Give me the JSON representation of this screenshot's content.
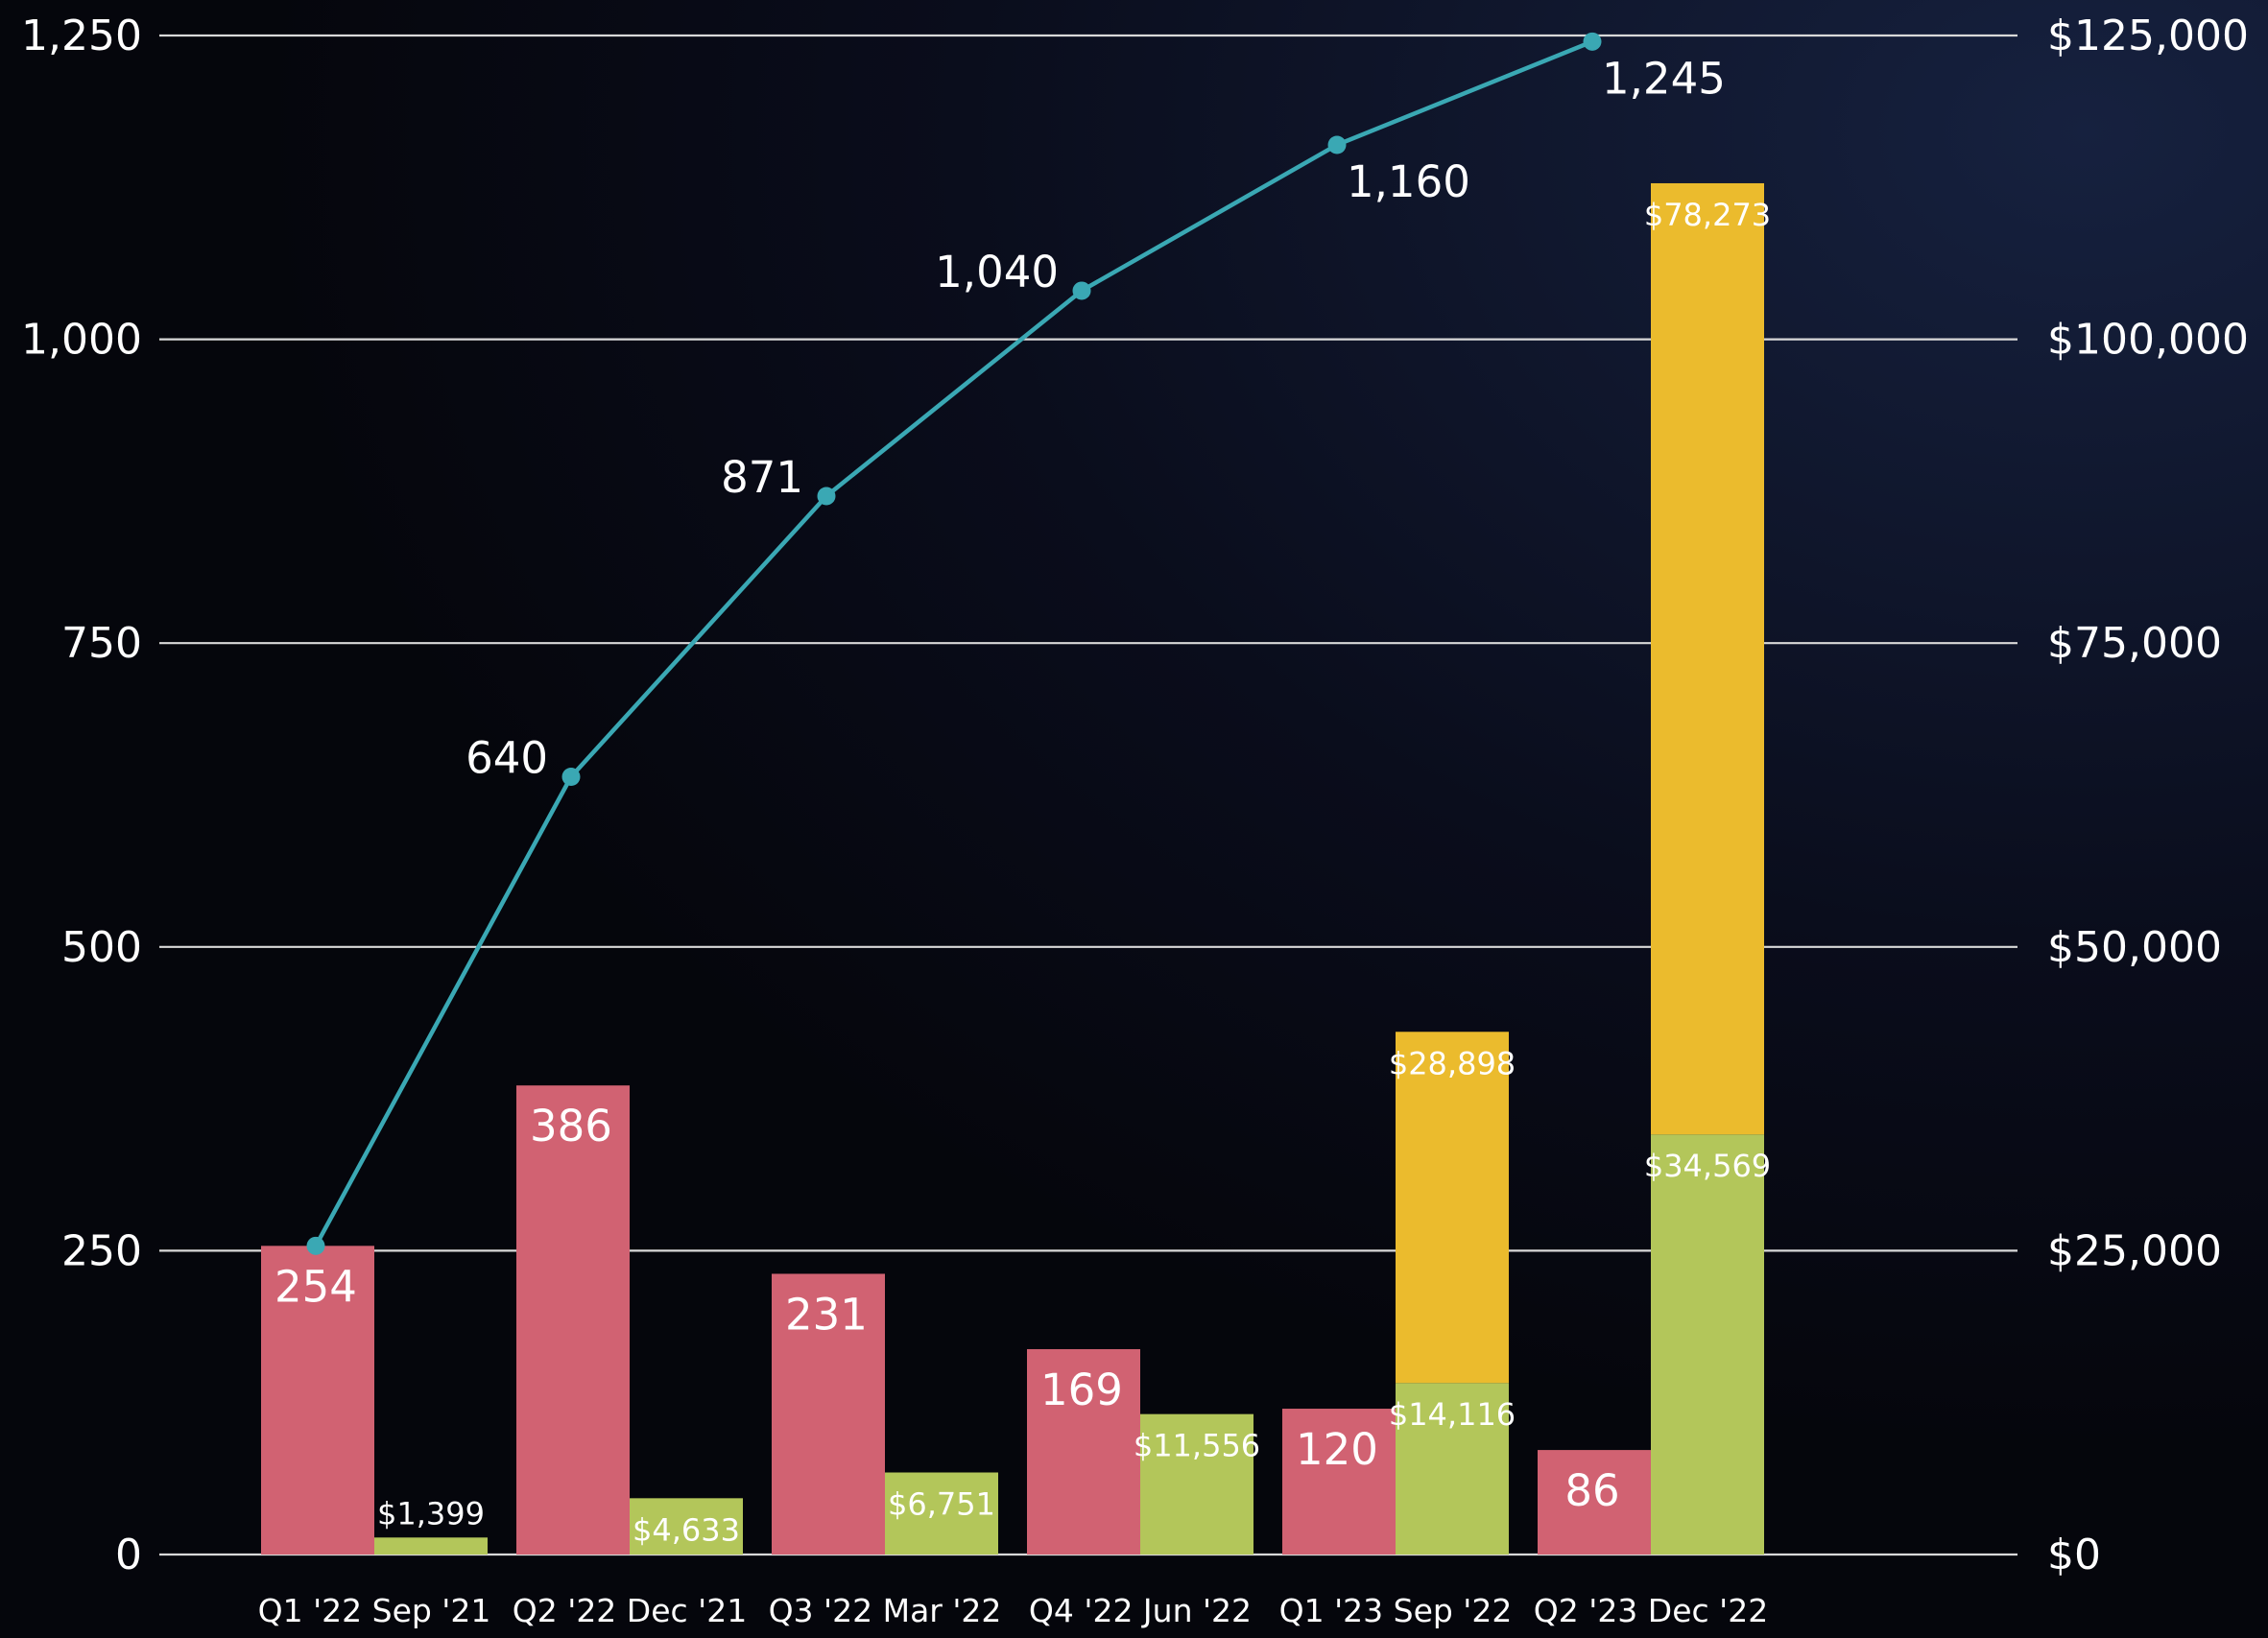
{
  "chart_data": {
    "type": "bar",
    "categories": [
      "Q1 '22 Sep '21",
      "Q2 '22 Dec '21",
      "Q3 '22 Mar '22",
      "Q4 '22 Jun '22",
      "Q1 '23 Sep '22",
      "Q2 '23 Dec '22"
    ],
    "y_left": {
      "ticks": [
        "0",
        "250",
        "500",
        "750",
        "1,000",
        "1,250"
      ],
      "range": [
        0,
        1250
      ]
    },
    "y_right": {
      "ticks": [
        "$0",
        "$25,000",
        "$50,000",
        "$75,000",
        "$100,000",
        "$125,000"
      ],
      "range": [
        0,
        125000
      ]
    },
    "grid": true,
    "series": [
      {
        "key": "count_bars",
        "axis": "left",
        "kind": "bar",
        "color": "#d16272",
        "values": [
          254,
          386,
          231,
          169,
          120,
          86
        ],
        "labels": [
          "254",
          "386",
          "231",
          "169",
          "120",
          "86"
        ]
      },
      {
        "key": "revenue_green",
        "axis": "right",
        "kind": "bar",
        "stack": "revenue",
        "color": "#b3c65a",
        "values": [
          1399,
          4633,
          6751,
          11556,
          14116,
          34569
        ],
        "labels": [
          "$1,399",
          "$4,633",
          "$6,751",
          "$11,556",
          "$14,116",
          "$34,569"
        ]
      },
      {
        "key": "revenue_yellow",
        "axis": "right",
        "kind": "bar",
        "stack": "revenue",
        "color": "#ebbb2d",
        "values": [
          null,
          null,
          null,
          null,
          28898,
          78273
        ],
        "labels": [
          "",
          "",
          "",
          "",
          "$28,898",
          "$78,273"
        ]
      },
      {
        "key": "cumulative_line",
        "axis": "left",
        "kind": "line",
        "color": "#3aa8b4",
        "values": [
          254,
          640,
          871,
          1040,
          1160,
          1245
        ],
        "labels": [
          "",
          "640",
          "871",
          "1,040",
          "1,160",
          "1,245"
        ]
      }
    ]
  }
}
